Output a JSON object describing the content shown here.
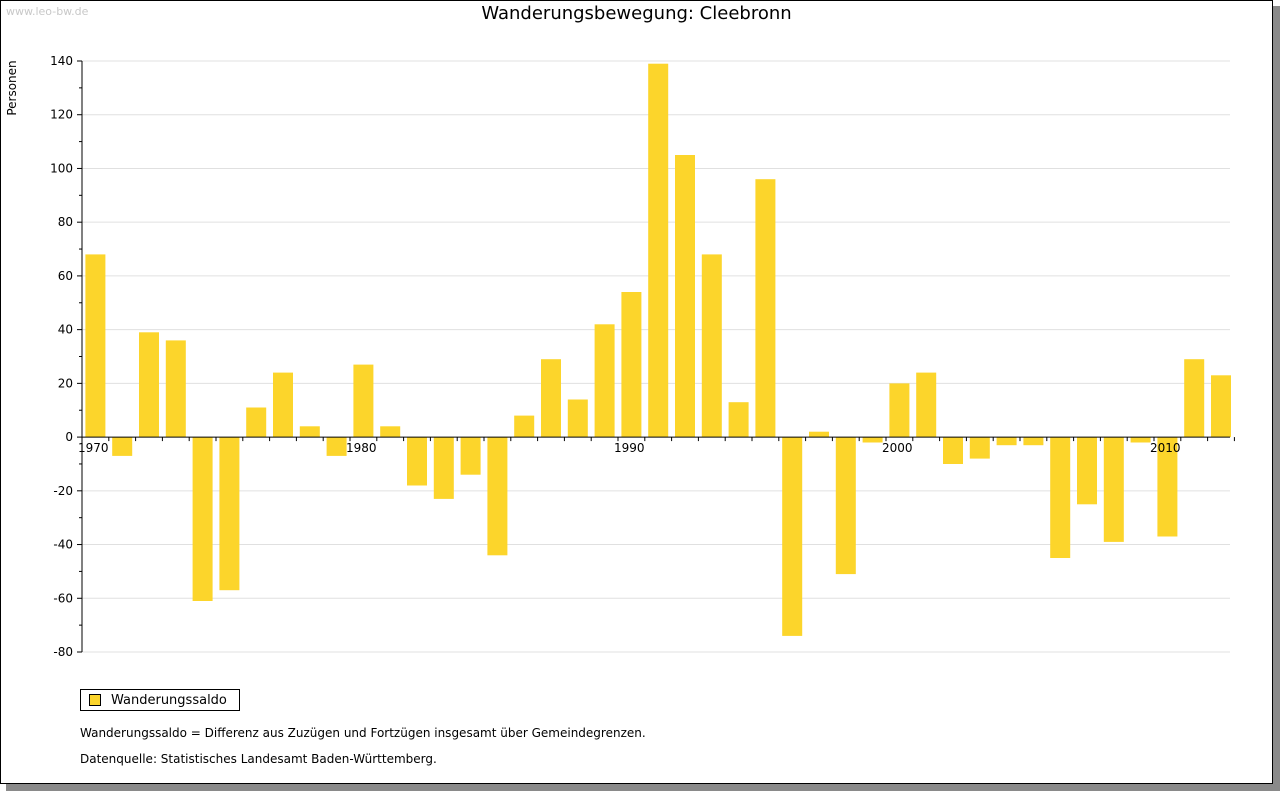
{
  "watermark": "www.leo-bw.de",
  "title": "Wanderungsbewegung: Cleebronn",
  "ylabel": "Personen",
  "legend_label": "Wanderungssaldo",
  "note1": "Wanderungssaldo = Differenz aus Zuzügen und Fortzügen insgesamt über Gemeindegrenzen.",
  "note2": "Datenquelle: Statistisches Landesamt Baden-Württemberg.",
  "colors": {
    "bar": "#fcd52b",
    "grid": "#e0e0e0",
    "axis": "#000000"
  },
  "chart_data": {
    "type": "bar",
    "title": "Wanderungsbewegung: Cleebronn",
    "xlabel": "",
    "ylabel": "Personen",
    "ylim": [
      -80,
      140
    ],
    "yticks": [
      140,
      120,
      100,
      80,
      60,
      40,
      20,
      0,
      -20,
      -40,
      -60,
      -80
    ],
    "xtick_labels": [
      "1970",
      "1980",
      "1990",
      "2000",
      "2010"
    ],
    "grid": true,
    "legend": "bottom-left",
    "categories": [
      1970,
      1971,
      1972,
      1973,
      1974,
      1975,
      1976,
      1977,
      1978,
      1979,
      1980,
      1981,
      1982,
      1983,
      1984,
      1985,
      1986,
      1987,
      1988,
      1989,
      1990,
      1991,
      1992,
      1993,
      1994,
      1995,
      1996,
      1997,
      1998,
      1999,
      2000,
      2001,
      2002,
      2003,
      2004,
      2005,
      2006,
      2007,
      2008,
      2009,
      2010,
      2011,
      2012
    ],
    "series": [
      {
        "name": "Wanderungssaldo",
        "values": [
          68,
          -7,
          39,
          36,
          -61,
          -57,
          11,
          24,
          4,
          -7,
          27,
          4,
          -18,
          -23,
          -14,
          -44,
          8,
          29,
          14,
          42,
          54,
          139,
          105,
          68,
          13,
          96,
          -74,
          2,
          -51,
          -2,
          20,
          24,
          -10,
          -8,
          -3,
          -3,
          -45,
          -25,
          -39,
          -2,
          -37,
          29,
          23
        ]
      }
    ]
  }
}
